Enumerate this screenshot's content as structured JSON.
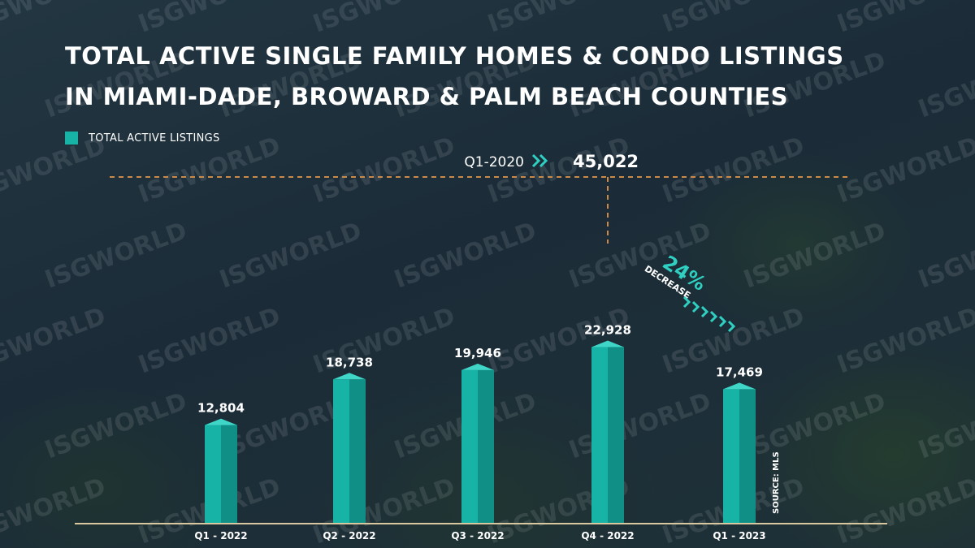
{
  "title_lines": [
    "TOTAL ACTIVE SINGLE FAMILY HOMES & CONDO LISTINGS",
    "IN MIAMI-DADE, BROWARD & PALM BEACH COUNTIES"
  ],
  "watermark": "ISGWORLD",
  "colors": {
    "bar": "#17b3a6",
    "bar_dark": "#0f8f86",
    "reference": "#c98a4a",
    "baseline": "#d9c7a0",
    "accent": "#2fd0c2"
  },
  "chart_data": {
    "type": "bar",
    "title": "TOTAL ACTIVE SINGLE FAMILY HOMES & CONDO LISTINGS IN MIAMI-DADE, BROWARD & PALM BEACH COUNTIES",
    "categories": [
      "Q1 - 2022",
      "Q2 - 2022",
      "Q3 - 2022",
      "Q4 - 2022",
      "Q1 - 2023"
    ],
    "series": [
      {
        "name": "TOTAL ACTIVE LISTINGS",
        "values": [
          12804,
          18738,
          19946,
          22928,
          17469
        ]
      }
    ],
    "value_labels": [
      "12,804",
      "18,738",
      "19,946",
      "22,928",
      "17,469"
    ],
    "ylim": [
      0,
      45022
    ],
    "grid": false,
    "legend": "top-left",
    "reference_line": {
      "label": "Q1-2020",
      "value": 45022,
      "value_label": "45,022"
    },
    "annotation": {
      "percent": "24%",
      "text": "DECREASE"
    },
    "source": "SOURCE: MLS"
  }
}
